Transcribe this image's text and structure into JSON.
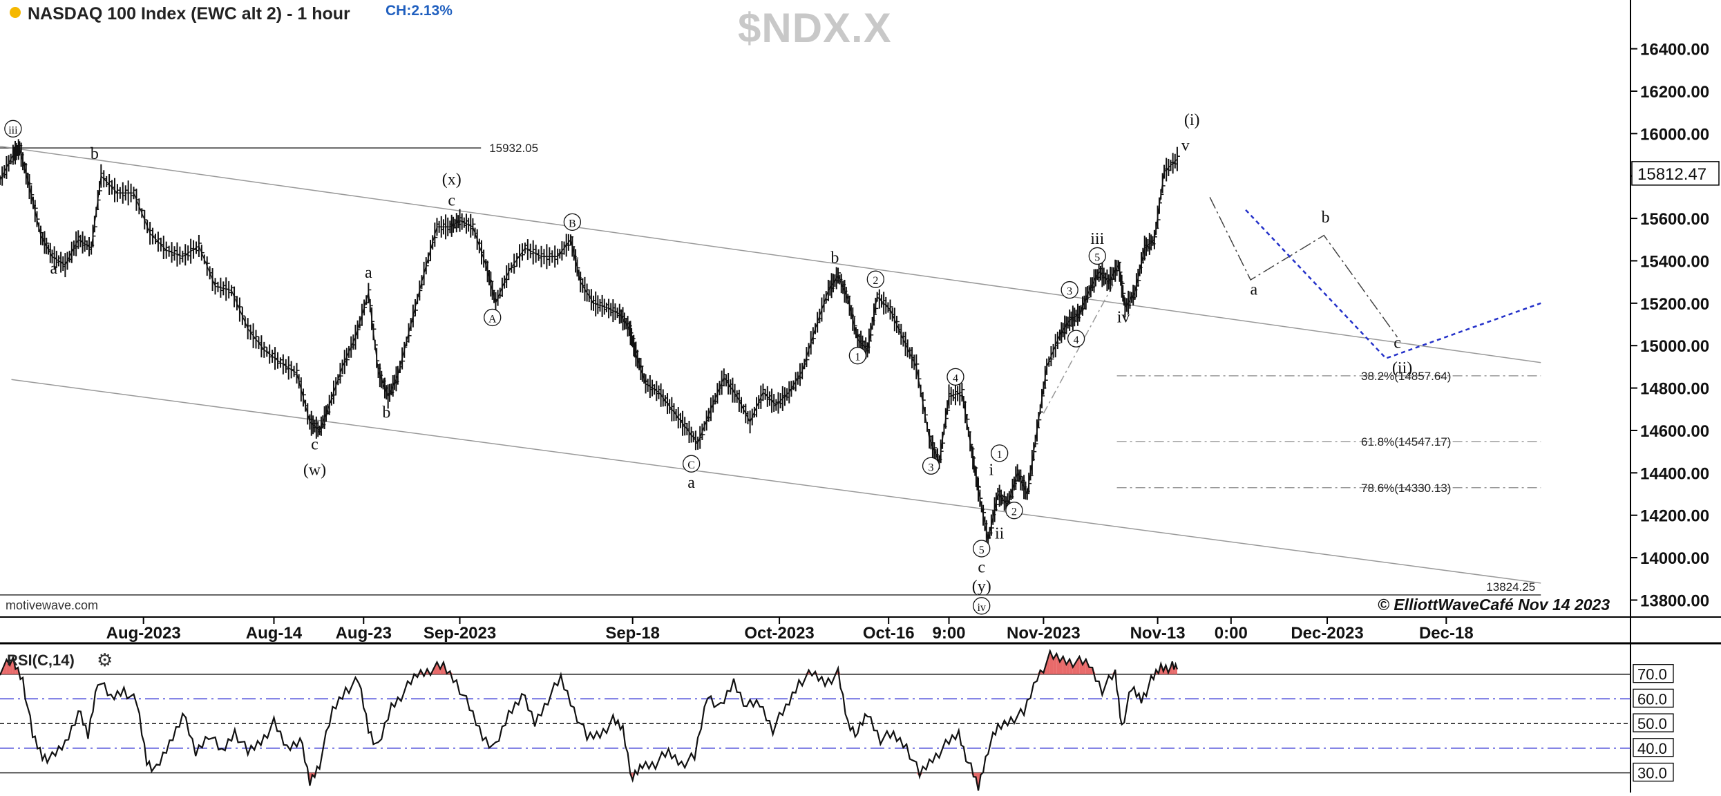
{
  "header": {
    "title": "NASDAQ 100 Index (EWC alt 2) - 1 hour",
    "change": "CH:2.13%",
    "ticker": "$NDX.X",
    "source": "motivewave.com",
    "copyright": "© ElliottWaveCafé Nov 14 2023",
    "status_dot_color": "#f5b800"
  },
  "chart_data": [
    {
      "type": "line",
      "name": "price",
      "ylim": [
        13720,
        16630
      ],
      "y_ticks": [
        "13800.00",
        "14000.00",
        "14200.00",
        "14400.00",
        "14600.00",
        "14800.00",
        "15000.00",
        "15200.00",
        "15400.00",
        "15600.00",
        "15800.00",
        "16000.00",
        "16200.00",
        "16400.00"
      ],
      "y_tick_values": [
        13800,
        14000,
        14200,
        14400,
        14600,
        14800,
        15000,
        15200,
        15400,
        15600,
        15800,
        16000,
        16200,
        16400
      ],
      "x_ticks": [
        "Aug-2023",
        "Aug-14",
        "Aug-23",
        "Sep-2023",
        "Sep-18",
        "Oct-2023",
        "Oct-16",
        "9:00",
        "Nov-2023",
        "Nov-13",
        "0:00",
        "Dec-2023",
        "Dec-18"
      ],
      "x_tick_pos": [
        0.088,
        0.168,
        0.223,
        0.282,
        0.388,
        0.478,
        0.545,
        0.582,
        0.64,
        0.71,
        0.755,
        0.814,
        0.887
      ],
      "last_price": "15812.47",
      "price_points": [
        [
          0.0,
          15780
        ],
        [
          0.008,
          15900
        ],
        [
          0.012,
          15930
        ],
        [
          0.018,
          15750
        ],
        [
          0.025,
          15520
        ],
        [
          0.032,
          15420
        ],
        [
          0.04,
          15380
        ],
        [
          0.048,
          15500
        ],
        [
          0.056,
          15460
        ],
        [
          0.062,
          15800
        ],
        [
          0.072,
          15720
        ],
        [
          0.082,
          15720
        ],
        [
          0.092,
          15530
        ],
        [
          0.102,
          15450
        ],
        [
          0.112,
          15420
        ],
        [
          0.122,
          15470
        ],
        [
          0.132,
          15280
        ],
        [
          0.142,
          15260
        ],
        [
          0.152,
          15080
        ],
        [
          0.162,
          14980
        ],
        [
          0.172,
          14920
        ],
        [
          0.182,
          14870
        ],
        [
          0.19,
          14640
        ],
        [
          0.196,
          14600
        ],
        [
          0.202,
          14720
        ],
        [
          0.21,
          14900
        ],
        [
          0.218,
          15040
        ],
        [
          0.226,
          15250
        ],
        [
          0.232,
          14880
        ],
        [
          0.238,
          14760
        ],
        [
          0.244,
          14860
        ],
        [
          0.252,
          15100
        ],
        [
          0.26,
          15340
        ],
        [
          0.268,
          15560
        ],
        [
          0.276,
          15560
        ],
        [
          0.282,
          15590
        ],
        [
          0.29,
          15560
        ],
        [
          0.298,
          15380
        ],
        [
          0.304,
          15200
        ],
        [
          0.312,
          15350
        ],
        [
          0.322,
          15460
        ],
        [
          0.332,
          15420
        ],
        [
          0.342,
          15420
        ],
        [
          0.35,
          15500
        ],
        [
          0.356,
          15300
        ],
        [
          0.364,
          15200
        ],
        [
          0.372,
          15180
        ],
        [
          0.38,
          15150
        ],
        [
          0.386,
          15080
        ],
        [
          0.39,
          14960
        ],
        [
          0.396,
          14820
        ],
        [
          0.404,
          14780
        ],
        [
          0.412,
          14700
        ],
        [
          0.42,
          14620
        ],
        [
          0.428,
          14540
        ],
        [
          0.436,
          14700
        ],
        [
          0.444,
          14850
        ],
        [
          0.452,
          14760
        ],
        [
          0.46,
          14640
        ],
        [
          0.468,
          14780
        ],
        [
          0.476,
          14720
        ],
        [
          0.484,
          14780
        ],
        [
          0.492,
          14880
        ],
        [
          0.5,
          15080
        ],
        [
          0.508,
          15260
        ],
        [
          0.514,
          15330
        ],
        [
          0.52,
          15220
        ],
        [
          0.526,
          15030
        ],
        [
          0.532,
          14980
        ],
        [
          0.538,
          15230
        ],
        [
          0.546,
          15170
        ],
        [
          0.554,
          15030
        ],
        [
          0.562,
          14900
        ],
        [
          0.57,
          14560
        ],
        [
          0.576,
          14450
        ],
        [
          0.582,
          14760
        ],
        [
          0.59,
          14780
        ],
        [
          0.596,
          14500
        ],
        [
          0.6,
          14320
        ],
        [
          0.606,
          14080
        ],
        [
          0.612,
          14300
        ],
        [
          0.618,
          14250
        ],
        [
          0.624,
          14400
        ],
        [
          0.63,
          14300
        ],
        [
          0.636,
          14600
        ],
        [
          0.642,
          14900
        ],
        [
          0.65,
          15050
        ],
        [
          0.656,
          15120
        ],
        [
          0.662,
          15150
        ],
        [
          0.668,
          15260
        ],
        [
          0.674,
          15350
        ],
        [
          0.68,
          15300
        ],
        [
          0.686,
          15380
        ],
        [
          0.69,
          15180
        ],
        [
          0.696,
          15250
        ],
        [
          0.702,
          15460
        ],
        [
          0.708,
          15500
        ],
        [
          0.714,
          15820
        ],
        [
          0.722,
          15880
        ]
      ],
      "channel_lines": [
        {
          "name": "upper-channel",
          "from": [
            0.0,
            15940
          ],
          "to": [
            0.945,
            14920
          ]
        },
        {
          "name": "lower-channel",
          "from": [
            0.007,
            14840
          ],
          "to": [
            0.945,
            13880
          ]
        }
      ],
      "projection_black": [
        [
          0.742,
          15700
        ],
        [
          0.767,
          15310
        ],
        [
          0.812,
          15520
        ],
        [
          0.857,
          15040
        ]
      ],
      "projection_blue": [
        [
          0.764,
          15640
        ],
        [
          0.85,
          14940
        ],
        [
          0.945,
          15200
        ]
      ],
      "wedge_line": [
        [
          0.64,
          14680
        ],
        [
          0.685,
          15320
        ]
      ],
      "horizontal_levels": [
        {
          "label": "15932.05",
          "value": 15932.05,
          "from": 0.0,
          "to": 0.295,
          "style": "solid"
        },
        {
          "label": "13824.25",
          "value": 13824.25,
          "from": 0.0,
          "to": 0.945,
          "style": "solid"
        },
        {
          "label": "38.2%(14857.64)",
          "value": 14857.64,
          "from": 0.685,
          "to": 0.945,
          "style": "dashdot"
        },
        {
          "label": "61.8%(14547.17)",
          "value": 14547.17,
          "from": 0.685,
          "to": 0.945,
          "style": "dashdot"
        },
        {
          "label": "78.6%(14330.13)",
          "value": 14330.13,
          "from": 0.685,
          "to": 0.945,
          "style": "dashdot"
        }
      ],
      "wave_labels": [
        {
          "text": "iii",
          "x": 0.008,
          "y": 16000,
          "circled": true
        },
        {
          "text": "a",
          "x": 0.033,
          "y": 15340,
          "circled": false
        },
        {
          "text": "b",
          "x": 0.058,
          "y": 15880,
          "circled": false
        },
        {
          "text": "c",
          "x": 0.193,
          "y": 14510,
          "circled": false
        },
        {
          "text": "(w)",
          "x": 0.193,
          "y": 14390,
          "circled": false
        },
        {
          "text": "a",
          "x": 0.226,
          "y": 15320,
          "circled": false
        },
        {
          "text": "b",
          "x": 0.237,
          "y": 14660,
          "circled": false
        },
        {
          "text": "(x)",
          "x": 0.277,
          "y": 15760,
          "circled": false
        },
        {
          "text": "c",
          "x": 0.277,
          "y": 15660,
          "circled": false
        },
        {
          "text": "A",
          "x": 0.302,
          "y": 15110,
          "circled": true
        },
        {
          "text": "B",
          "x": 0.351,
          "y": 15560,
          "circled": true
        },
        {
          "text": "C",
          "x": 0.424,
          "y": 14420,
          "circled": true
        },
        {
          "text": "a",
          "x": 0.424,
          "y": 14330,
          "circled": false
        },
        {
          "text": "b",
          "x": 0.512,
          "y": 15390,
          "circled": false
        },
        {
          "text": "1",
          "x": 0.526,
          "y": 14930,
          "circled": true
        },
        {
          "text": "2",
          "x": 0.537,
          "y": 15290,
          "circled": true
        },
        {
          "text": "3",
          "x": 0.571,
          "y": 14410,
          "circled": true
        },
        {
          "text": "4",
          "x": 0.586,
          "y": 14830,
          "circled": true
        },
        {
          "text": "5",
          "x": 0.602,
          "y": 14020,
          "circled": true
        },
        {
          "text": "c",
          "x": 0.602,
          "y": 13930,
          "circled": false
        },
        {
          "text": "(y)",
          "x": 0.602,
          "y": 13840,
          "circled": false
        },
        {
          "text": "iv",
          "x": 0.602,
          "y": 13750,
          "circled": true
        },
        {
          "text": "i",
          "x": 0.608,
          "y": 14390,
          "circled": false
        },
        {
          "text": "1",
          "x": 0.613,
          "y": 14470,
          "circled": true
        },
        {
          "text": "ii",
          "x": 0.613,
          "y": 14090,
          "circled": false
        },
        {
          "text": "2",
          "x": 0.622,
          "y": 14200,
          "circled": true
        },
        {
          "text": "3",
          "x": 0.656,
          "y": 15240,
          "circled": true
        },
        {
          "text": "4",
          "x": 0.66,
          "y": 15010,
          "circled": true
        },
        {
          "text": "iii",
          "x": 0.673,
          "y": 15480,
          "circled": false
        },
        {
          "text": "5",
          "x": 0.673,
          "y": 15400,
          "circled": true
        },
        {
          "text": "iv",
          "x": 0.689,
          "y": 15110,
          "circled": false
        },
        {
          "text": "v",
          "x": 0.727,
          "y": 15920,
          "circled": false
        },
        {
          "text": "(i)",
          "x": 0.731,
          "y": 16040,
          "circled": false
        },
        {
          "text": "a",
          "x": 0.769,
          "y": 15240,
          "circled": false
        },
        {
          "text": "b",
          "x": 0.813,
          "y": 15580,
          "circled": false
        },
        {
          "text": "c",
          "x": 0.857,
          "y": 14990,
          "circled": false
        },
        {
          "text": "(ii)",
          "x": 0.86,
          "y": 14870,
          "circled": false
        }
      ]
    },
    {
      "type": "line",
      "name": "rsi",
      "title": "RSI(C,14)",
      "ylim": [
        22,
        80
      ],
      "y_ticks": [
        "70.0",
        "60.0",
        "50.0",
        "40.0",
        "30.0"
      ],
      "y_tick_values": [
        70,
        60,
        50,
        40,
        30
      ],
      "levels": [
        {
          "value": 70,
          "style": "solid"
        },
        {
          "value": 60,
          "style": "dashdot-blue"
        },
        {
          "value": 50,
          "style": "dashed"
        },
        {
          "value": 40,
          "style": "dashdot-blue"
        },
        {
          "value": 30,
          "style": "solid"
        }
      ],
      "rsi_points": [
        [
          0.0,
          72
        ],
        [
          0.008,
          75
        ],
        [
          0.014,
          68
        ],
        [
          0.02,
          45
        ],
        [
          0.026,
          37
        ],
        [
          0.032,
          36
        ],
        [
          0.04,
          42
        ],
        [
          0.048,
          55
        ],
        [
          0.054,
          45
        ],
        [
          0.06,
          68
        ],
        [
          0.068,
          60
        ],
        [
          0.076,
          64
        ],
        [
          0.084,
          58
        ],
        [
          0.09,
          35
        ],
        [
          0.096,
          31
        ],
        [
          0.104,
          42
        ],
        [
          0.112,
          54
        ],
        [
          0.12,
          38
        ],
        [
          0.128,
          46
        ],
        [
          0.136,
          38
        ],
        [
          0.144,
          47
        ],
        [
          0.152,
          38
        ],
        [
          0.16,
          43
        ],
        [
          0.168,
          50
        ],
        [
          0.176,
          40
        ],
        [
          0.184,
          44
        ],
        [
          0.19,
          26
        ],
        [
          0.196,
          34
        ],
        [
          0.204,
          55
        ],
        [
          0.212,
          64
        ],
        [
          0.22,
          67
        ],
        [
          0.226,
          48
        ],
        [
          0.232,
          40
        ],
        [
          0.24,
          57
        ],
        [
          0.248,
          63
        ],
        [
          0.256,
          70
        ],
        [
          0.264,
          72
        ],
        [
          0.272,
          73
        ],
        [
          0.28,
          67
        ],
        [
          0.288,
          56
        ],
        [
          0.296,
          45
        ],
        [
          0.304,
          40
        ],
        [
          0.312,
          54
        ],
        [
          0.32,
          62
        ],
        [
          0.328,
          50
        ],
        [
          0.336,
          60
        ],
        [
          0.344,
          68
        ],
        [
          0.352,
          56
        ],
        [
          0.36,
          44
        ],
        [
          0.368,
          46
        ],
        [
          0.376,
          51
        ],
        [
          0.382,
          48
        ],
        [
          0.388,
          27
        ],
        [
          0.394,
          33
        ],
        [
          0.402,
          34
        ],
        [
          0.41,
          38
        ],
        [
          0.418,
          34
        ],
        [
          0.426,
          36
        ],
        [
          0.434,
          62
        ],
        [
          0.442,
          56
        ],
        [
          0.45,
          67
        ],
        [
          0.458,
          57
        ],
        [
          0.466,
          58
        ],
        [
          0.474,
          48
        ],
        [
          0.482,
          56
        ],
        [
          0.49,
          67
        ],
        [
          0.498,
          70
        ],
        [
          0.506,
          67
        ],
        [
          0.514,
          70
        ],
        [
          0.52,
          50
        ],
        [
          0.526,
          46
        ],
        [
          0.532,
          54
        ],
        [
          0.54,
          44
        ],
        [
          0.548,
          45
        ],
        [
          0.556,
          41
        ],
        [
          0.564,
          29
        ],
        [
          0.572,
          36
        ],
        [
          0.58,
          41
        ],
        [
          0.588,
          46
        ],
        [
          0.594,
          34
        ],
        [
          0.6,
          24
        ],
        [
          0.606,
          40
        ],
        [
          0.612,
          48
        ],
        [
          0.62,
          52
        ],
        [
          0.628,
          54
        ],
        [
          0.636,
          69
        ],
        [
          0.644,
          77
        ],
        [
          0.652,
          76
        ],
        [
          0.66,
          75
        ],
        [
          0.668,
          74
        ],
        [
          0.676,
          64
        ],
        [
          0.684,
          70
        ],
        [
          0.688,
          49
        ],
        [
          0.694,
          64
        ],
        [
          0.7,
          60
        ],
        [
          0.706,
          67
        ],
        [
          0.712,
          73
        ],
        [
          0.718,
          73
        ],
        [
          0.722,
          72
        ]
      ]
    }
  ]
}
